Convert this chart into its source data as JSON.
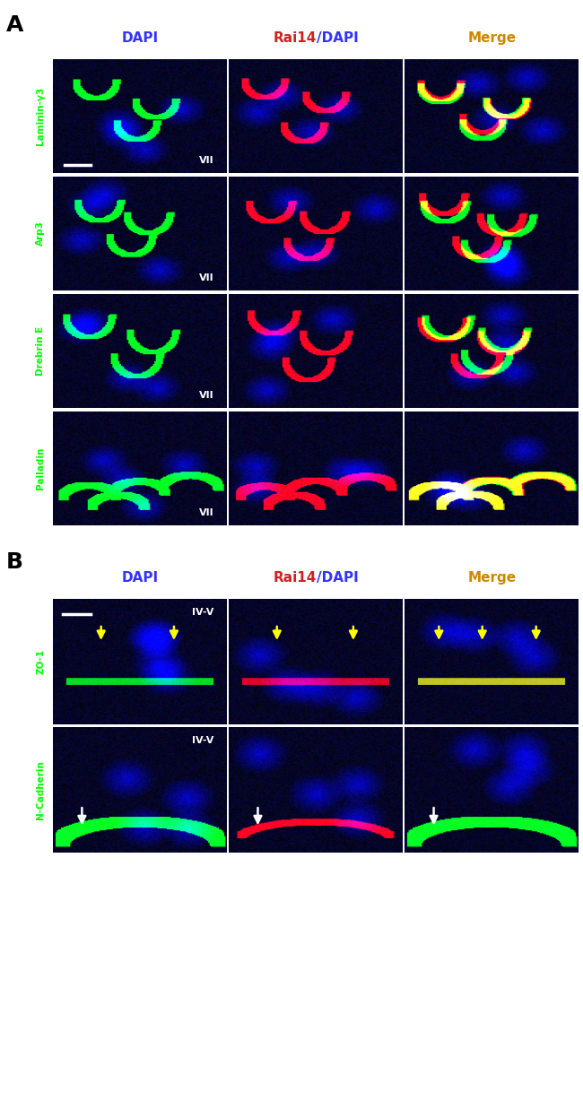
{
  "panel_A_label": "A",
  "panel_B_label": "B",
  "col_headers": [
    "DAPI",
    "Rai14/DAPI",
    "Merge"
  ],
  "col_header_colors": [
    "#3333ff",
    "#cc2222",
    "#cc8800"
  ],
  "row_labels_A": [
    "Laminin-γ3",
    "Arp3",
    "Drebrin E",
    "Palladin"
  ],
  "row_labels_B": [
    "ZO-1",
    "N-Cadherin"
  ],
  "row_label_color": "#00ff00",
  "roman_A": "VII",
  "roman_B": "IV-V",
  "n_rows_A": 4,
  "n_cols": 3
}
